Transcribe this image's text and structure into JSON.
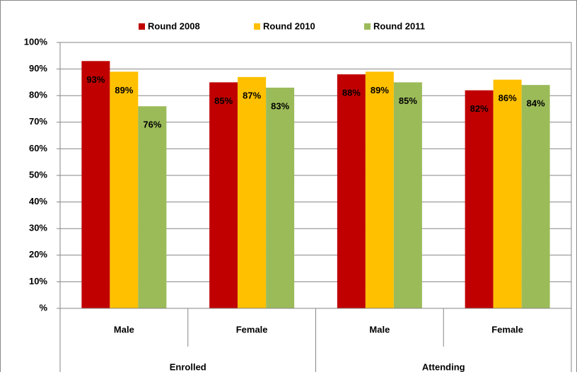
{
  "chart_data": {
    "type": "bar",
    "categories": [
      "Male",
      "Female",
      "Male",
      "Female"
    ],
    "group_labels": [
      "Enrolled",
      "Attending"
    ],
    "series": [
      {
        "name": "Round 2008",
        "color": "#c00000",
        "values": [
          93,
          85,
          88,
          82
        ],
        "value_labels": [
          "93%",
          "85%",
          "88%",
          "82%"
        ]
      },
      {
        "name": "Round 2010",
        "color": "#ffc000",
        "values": [
          89,
          87,
          89,
          86
        ],
        "value_labels": [
          "89%",
          "87%",
          "89%",
          "86%"
        ]
      },
      {
        "name": "Round 2011",
        "color": "#9bbb59",
        "values": [
          76,
          83,
          85,
          84
        ],
        "value_labels": [
          "76%",
          "83%",
          "85%",
          "84%"
        ]
      }
    ],
    "ylim": [
      0,
      100
    ],
    "yticks": [
      {
        "value": 0,
        "label": "%"
      },
      {
        "value": 10,
        "label": "10%"
      },
      {
        "value": 20,
        "label": "20%"
      },
      {
        "value": 30,
        "label": "30%"
      },
      {
        "value": 40,
        "label": "40%"
      },
      {
        "value": 50,
        "label": "50%"
      },
      {
        "value": 60,
        "label": "60%"
      },
      {
        "value": 70,
        "label": "70%"
      },
      {
        "value": 80,
        "label": "80%"
      },
      {
        "value": 90,
        "label": "90%"
      },
      {
        "value": 100,
        "label": "100%"
      }
    ],
    "grid": true,
    "legend": "top"
  }
}
